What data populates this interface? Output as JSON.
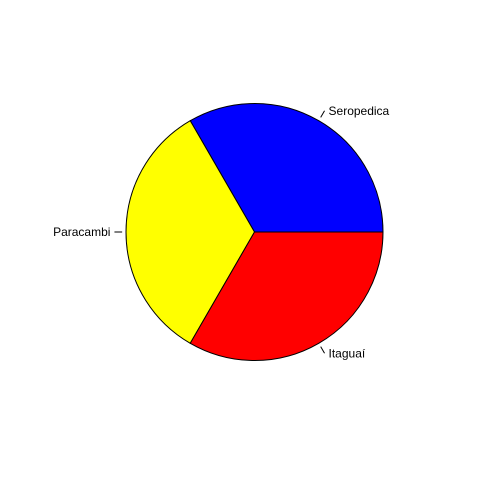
{
  "chart_data": {
    "type": "pie",
    "title": "",
    "start_angle_deg": 0,
    "direction": "counterclockwise",
    "slices": [
      {
        "label": "Seropedica",
        "value": 1,
        "color": "#0000FF"
      },
      {
        "label": "Paracambi",
        "value": 1,
        "color": "#FFFF00"
      },
      {
        "label": "Itaguaí",
        "value": 1,
        "color": "#FF0000"
      }
    ],
    "outline_color": "#000000",
    "label_color": "#000000"
  }
}
